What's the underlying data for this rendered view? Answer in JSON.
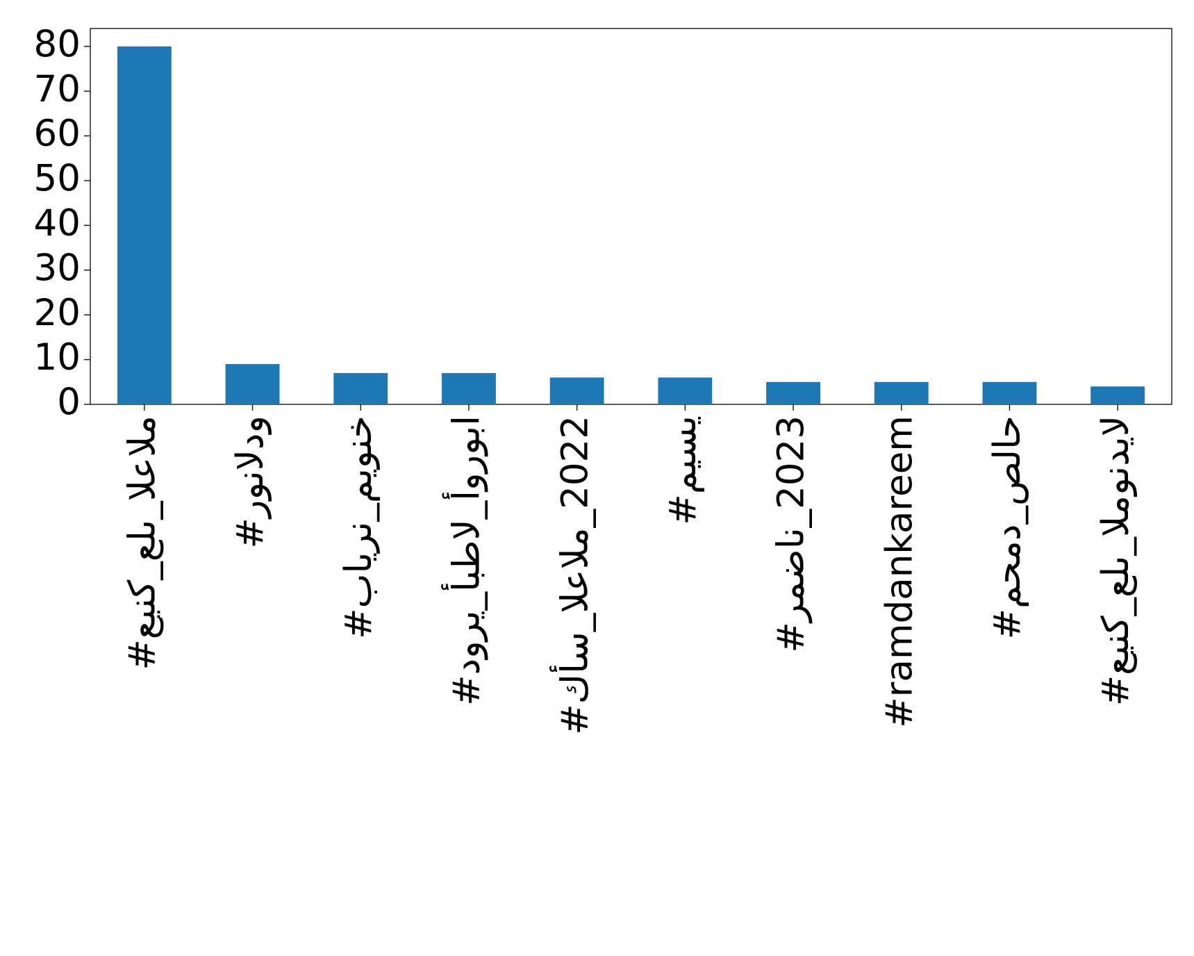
{
  "chart_data": {
    "type": "bar",
    "categories": [
      "#عينك_على_العالم",
      "#رونالدو",
      "#بايرن_ميونخ",
      "#دوري_أبطال_أوروبا",
      "#كأس_العالم_2022",
      "#ميسي",
      "#رمضان_2023",
      "#ramdankareem",
      "#محمد_صلاح",
      "#عينك_على_المونديال"
    ],
    "values": [
      80,
      9,
      7,
      7,
      6,
      6,
      5,
      5,
      5,
      4
    ],
    "color": "#1f77b4",
    "ylim": [
      0,
      84
    ],
    "yticks": [
      0,
      10,
      20,
      30,
      40,
      50,
      60,
      70,
      80
    ],
    "grid": false
  }
}
